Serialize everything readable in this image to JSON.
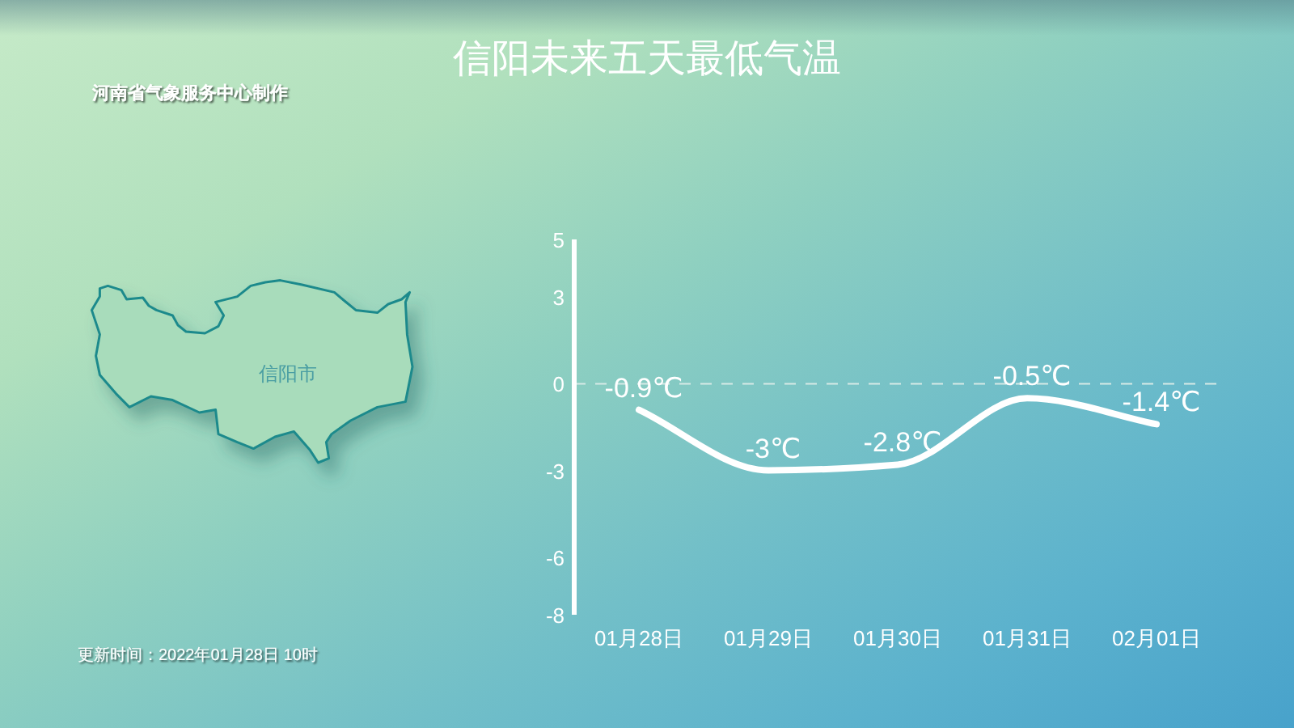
{
  "chart_data": {
    "type": "line",
    "title": "信阳未来五天最低气温",
    "categories": [
      "01月28日",
      "01月29日",
      "01月30日",
      "01月31日",
      "02月01日"
    ],
    "series": [
      {
        "color": "#ffffff",
        "values": [
          -0.9,
          -3,
          -2.8,
          -0.5,
          -1.4
        ],
        "value_labels": [
          "-0.9℃",
          "-3℃",
          "-2.8℃",
          "-0.5℃",
          "-1.4℃"
        ]
      }
    ],
    "ylim": [
      -8,
      5
    ],
    "yticks": [
      5,
      3,
      0,
      -3,
      -6,
      -8
    ],
    "ref_lines": [
      {
        "axis": "y",
        "value": 0,
        "line_style": "dashed",
        "color": "#d6e9e6"
      }
    ],
    "grid": false,
    "marker": "none",
    "line_style": "solid",
    "annotations": [
      "河南省气象服务中心制作",
      "更新时间：2022年01月28日 10时",
      "信阳市"
    ]
  }
}
